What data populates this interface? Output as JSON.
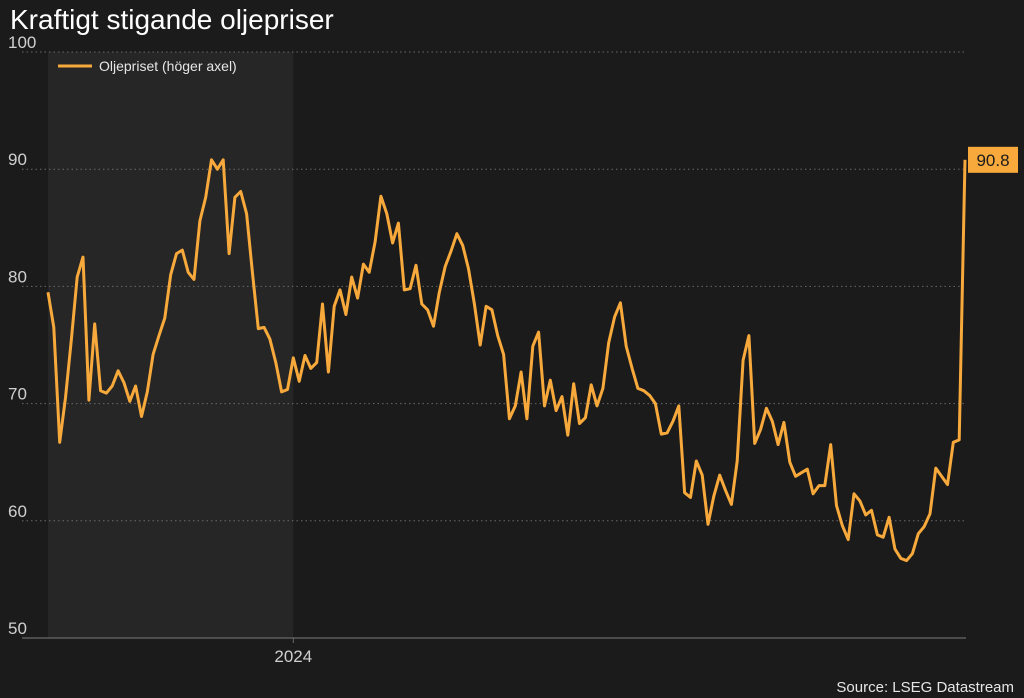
{
  "title": "Kraftigt stigande oljepriser",
  "source": "Source: LSEG Datastream",
  "colors": {
    "background": "#1b1b1b",
    "shade": "#262626",
    "series": "#f7a93c",
    "grid": "#6a6a6a"
  },
  "chart_data": {
    "type": "line",
    "title": "Kraftigt stigande oljepriser",
    "xlabel": "",
    "ylabel": "",
    "ylim": [
      50,
      100
    ],
    "yticks": [
      50,
      60,
      70,
      80,
      90,
      100
    ],
    "y_axis_side": "left",
    "grid": "horizontal dotted",
    "legend_placement": "top-left",
    "x_ticks": [
      {
        "label": "2024",
        "index": 42
      }
    ],
    "shaded_region": {
      "from_index": 0,
      "to_index": 42
    },
    "end_value_label": "90.8",
    "series": [
      {
        "name": "Oljepriset (höger axel)",
        "color": "#f7a93c",
        "values": [
          79.5,
          76.5,
          66.7,
          70.5,
          75.5,
          80.8,
          82.5,
          70.3,
          76.8,
          71.1,
          70.9,
          71.5,
          72.8,
          71.8,
          70.2,
          71.5,
          68.9,
          71.0,
          74.2,
          75.8,
          77.3,
          81.0,
          82.8,
          83.1,
          81.2,
          80.6,
          85.6,
          87.6,
          90.8,
          90.0,
          90.8,
          82.8,
          87.6,
          88.1,
          86.2,
          81.2,
          76.4,
          76.5,
          75.5,
          73.5,
          71.0,
          71.2,
          73.9,
          71.9,
          74.1,
          73.0,
          73.5,
          78.5,
          72.7,
          78.3,
          79.7,
          77.6,
          80.8,
          79.0,
          81.9,
          81.2,
          83.8,
          87.7,
          86.2,
          83.7,
          85.4,
          79.7,
          79.8,
          81.8,
          78.5,
          78.0,
          76.6,
          79.5,
          81.7,
          83.0,
          84.5,
          83.5,
          81.5,
          78.5,
          75.0,
          78.3,
          78.0,
          75.8,
          74.2,
          68.7,
          69.8,
          72.7,
          68.7,
          74.9,
          76.1,
          69.8,
          72.0,
          69.4,
          70.6,
          67.3,
          71.7,
          68.3,
          68.8,
          71.6,
          69.8,
          71.3,
          75.2,
          77.4,
          78.6,
          74.9,
          73.0,
          71.3,
          71.1,
          70.7,
          70.0,
          67.4,
          67.5,
          68.5,
          69.8,
          62.4,
          62.0,
          65.1,
          63.9,
          59.7,
          62.1,
          63.9,
          62.6,
          61.4,
          65.1,
          73.7,
          75.8,
          66.6,
          67.8,
          69.6,
          68.5,
          66.5,
          68.4,
          65.0,
          63.8,
          64.1,
          64.4,
          62.3,
          63.0,
          63.0,
          66.5,
          61.3,
          59.6,
          58.4,
          62.3,
          61.7,
          60.5,
          60.9,
          58.8,
          58.6,
          60.3,
          57.6,
          56.8,
          56.6,
          57.2,
          58.9,
          59.5,
          60.6,
          64.5,
          63.8,
          63.1,
          66.7,
          66.9,
          90.8
        ]
      }
    ]
  }
}
